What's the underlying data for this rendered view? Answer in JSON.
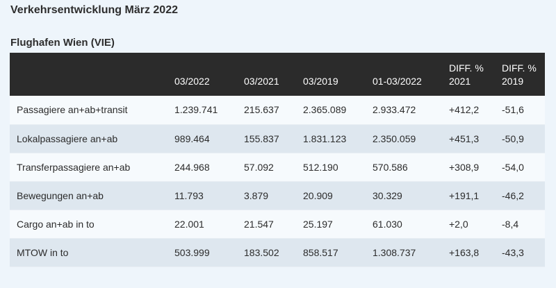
{
  "page_title": "Verkehrsentwicklung März 2022",
  "section_title": "Flughafen Wien (VIE)",
  "table": {
    "headers": [
      {
        "line1": "",
        "line2": ""
      },
      {
        "line1": "",
        "line2": "03/2022"
      },
      {
        "line1": "",
        "line2": "03/2021"
      },
      {
        "line1": "",
        "line2": "03/2019"
      },
      {
        "line1": "",
        "line2": "01-03/2022"
      },
      {
        "line1": "DIFF. %",
        "line2": "2021"
      },
      {
        "line1": "DIFF. %",
        "line2": "2019"
      }
    ],
    "rows": [
      [
        "Passagiere an+ab+transit",
        "1.239.741",
        "215.637",
        "2.365.089",
        "2.933.472",
        "+412,2",
        "-51,6"
      ],
      [
        "Lokalpassagiere an+ab",
        "989.464",
        "155.837",
        "1.831.123",
        "2.350.059",
        "+451,3",
        "-50,9"
      ],
      [
        "Transferpassagiere an+ab",
        "244.968",
        "57.092",
        "512.190",
        "570.586",
        "+308,9",
        "-54,0"
      ],
      [
        "Bewegungen an+ab",
        "11.793",
        "3.879",
        "20.909",
        "30.329",
        "+191,1",
        "-46,2"
      ],
      [
        "Cargo an+ab in to",
        "22.001",
        "21.547",
        "25.197",
        "61.030",
        "+2,0",
        "-8,4"
      ],
      [
        "MTOW in to",
        "503.999",
        "183.502",
        "858.517",
        "1.308.737",
        "+163,8",
        "-43,3"
      ]
    ]
  }
}
